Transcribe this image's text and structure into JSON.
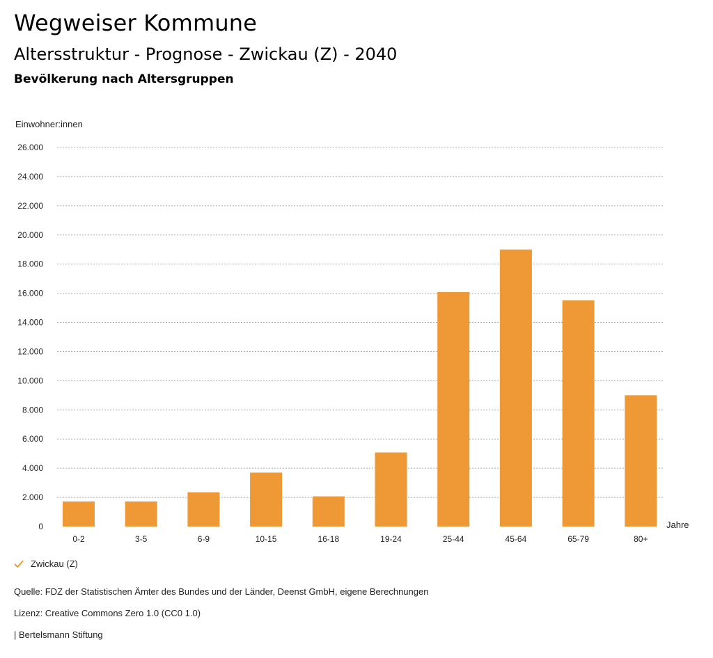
{
  "title": "Wegweiser Kommune",
  "subtitle": "Altersstruktur - Prognose - Zwickau (Z) - 2040",
  "subsubtitle": "Bevölkerung nach Altersgruppen",
  "legend": {
    "label": "Zwickau (Z)",
    "icon": "checkmark-icon"
  },
  "footer": {
    "source": "Quelle: FDZ der Statistischen Ämter des Bundes und der Länder, Deenst GmbH, eigene Berechnungen",
    "license": "Lizenz: Creative Commons Zero 1.0 (CC0 1.0)",
    "brand": "| Bertelsmann Stiftung"
  },
  "colors": {
    "bar": "#EE9936",
    "grid": "#a9a9a9",
    "text": "#222222"
  },
  "chart_data": {
    "type": "bar",
    "title": "Bevölkerung nach Altersgruppen",
    "xlabel": "Jahre",
    "ylabel": "Einwohner:innen",
    "ylim": [
      0,
      26000
    ],
    "yticks": [
      0,
      2000,
      4000,
      6000,
      8000,
      10000,
      12000,
      14000,
      16000,
      18000,
      20000,
      22000,
      24000,
      26000
    ],
    "ytick_labels": [
      "0",
      "2.000",
      "4.000",
      "6.000",
      "8.000",
      "10.000",
      "12.000",
      "14.000",
      "16.000",
      "18.000",
      "20.000",
      "22.000",
      "24.000",
      "26.000"
    ],
    "grid": true,
    "legend_position": "bottom-left",
    "categories": [
      "0-2",
      "3-5",
      "6-9",
      "10-15",
      "16-18",
      "19-24",
      "25-44",
      "45-64",
      "65-79",
      "80+"
    ],
    "series": [
      {
        "name": "Zwickau (Z)",
        "values": [
          1720,
          1720,
          2350,
          3700,
          2070,
          5080,
          16080,
          19000,
          15520,
          9000
        ]
      }
    ]
  }
}
